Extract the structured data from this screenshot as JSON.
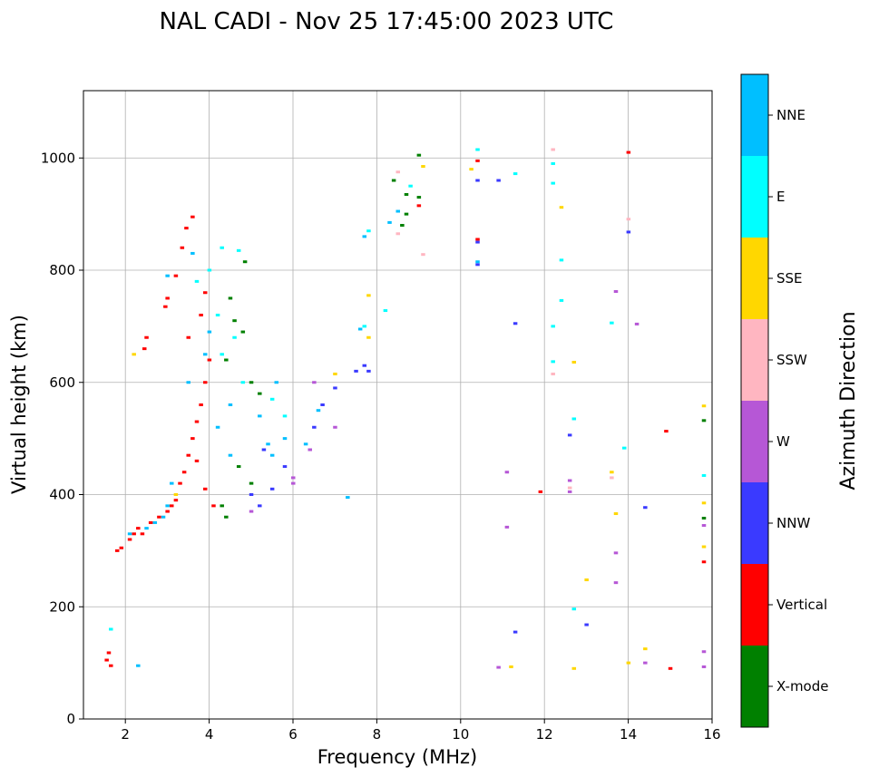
{
  "chart_data": {
    "type": "scatter",
    "title": "NAL CADI - Nov 25 17:45:00 2023 UTC",
    "xlabel": "Frequency (MHz)",
    "ylabel": "Virtual height (km)",
    "xlim": [
      1,
      16
    ],
    "ylim": [
      0,
      1120
    ],
    "xticks": [
      2,
      4,
      6,
      8,
      10,
      12,
      14,
      16
    ],
    "yticks": [
      0,
      200,
      400,
      600,
      800,
      1000
    ],
    "grid": true,
    "colorbar": {
      "title": "Azimuth Direction",
      "categories": [
        {
          "name": "X-mode",
          "color": "#008000"
        },
        {
          "name": "Vertical",
          "color": "#ff0000"
        },
        {
          "name": "NNW",
          "color": "#3a3aff"
        },
        {
          "name": "W",
          "color": "#b657d6"
        },
        {
          "name": "SSW",
          "color": "#ffb6c1"
        },
        {
          "name": "SSE",
          "color": "#ffd700"
        },
        {
          "name": "E",
          "color": "#00ffff"
        },
        {
          "name": "NNE",
          "color": "#00bfff"
        }
      ]
    },
    "series": [
      {
        "name": "Vertical",
        "points": [
          [
            1.55,
            105
          ],
          [
            1.6,
            118
          ],
          [
            1.65,
            95
          ],
          [
            1.8,
            300
          ],
          [
            1.9,
            305
          ],
          [
            2.1,
            320
          ],
          [
            2.2,
            330
          ],
          [
            2.3,
            340
          ],
          [
            2.4,
            330
          ],
          [
            2.6,
            350
          ],
          [
            2.8,
            360
          ],
          [
            3.0,
            370
          ],
          [
            3.1,
            380
          ],
          [
            3.2,
            390
          ],
          [
            3.3,
            420
          ],
          [
            3.4,
            440
          ],
          [
            3.5,
            470
          ],
          [
            3.6,
            500
          ],
          [
            3.7,
            530
          ],
          [
            3.8,
            560
          ],
          [
            3.9,
            600
          ],
          [
            4.0,
            640
          ],
          [
            3.5,
            680
          ],
          [
            3.8,
            720
          ],
          [
            3.9,
            760
          ],
          [
            2.95,
            735
          ],
          [
            3.0,
            750
          ],
          [
            3.2,
            790
          ],
          [
            3.35,
            840
          ],
          [
            3.45,
            875
          ],
          [
            3.6,
            895
          ],
          [
            2.45,
            660
          ],
          [
            2.5,
            680
          ],
          [
            3.7,
            460
          ],
          [
            3.9,
            410
          ],
          [
            4.1,
            380
          ],
          [
            10.4,
            855
          ],
          [
            10.4,
            995
          ],
          [
            9.0,
            915
          ],
          [
            11.9,
            405
          ],
          [
            14.9,
            513
          ],
          [
            15.0,
            90
          ],
          [
            15.8,
            280
          ],
          [
            14,
            1010
          ]
        ]
      },
      {
        "name": "X-mode",
        "points": [
          [
            4.3,
            380
          ],
          [
            4.5,
            750
          ],
          [
            4.6,
            710
          ],
          [
            4.8,
            690
          ],
          [
            5.0,
            600
          ],
          [
            5.2,
            580
          ],
          [
            4.7,
            450
          ],
          [
            5.0,
            420
          ],
          [
            4.4,
            360
          ],
          [
            8.7,
            900
          ],
          [
            8.7,
            935
          ],
          [
            8.6,
            880
          ],
          [
            9.0,
            1005
          ],
          [
            8.4,
            960
          ],
          [
            9.0,
            930
          ],
          [
            15.8,
            532
          ],
          [
            15.8,
            358
          ],
          [
            4.85,
            815
          ],
          [
            4.4,
            640
          ]
        ]
      },
      {
        "name": "NNW",
        "points": [
          [
            5.2,
            380
          ],
          [
            5.5,
            410
          ],
          [
            5.8,
            450
          ],
          [
            6.5,
            520
          ],
          [
            6.7,
            560
          ],
          [
            7.0,
            590
          ],
          [
            7.5,
            620
          ],
          [
            7.7,
            630
          ],
          [
            5.3,
            480
          ],
          [
            5.0,
            400
          ],
          [
            10.4,
            810
          ],
          [
            10.4,
            960
          ],
          [
            10.4,
            850
          ],
          [
            10.9,
            960
          ],
          [
            12.6,
            506
          ],
          [
            13.0,
            168
          ],
          [
            14.4,
            377
          ],
          [
            14,
            868
          ],
          [
            11.3,
            155
          ],
          [
            11.3,
            705
          ],
          [
            7.8,
            620
          ]
        ]
      },
      {
        "name": "W",
        "points": [
          [
            5.0,
            370
          ],
          [
            6.0,
            420
          ],
          [
            6.0,
            430
          ],
          [
            6.4,
            480
          ],
          [
            6.5,
            600
          ],
          [
            7.0,
            520
          ],
          [
            13.7,
            762
          ],
          [
            11.1,
            440
          ],
          [
            11.1,
            342
          ],
          [
            12.6,
            425
          ],
          [
            12.6,
            405
          ],
          [
            10.9,
            92
          ],
          [
            13.7,
            243
          ],
          [
            13.7,
            296
          ],
          [
            15.8,
            345
          ],
          [
            15.8,
            120
          ],
          [
            14.2,
            704
          ],
          [
            14.4,
            100
          ],
          [
            15.8,
            93
          ]
        ]
      },
      {
        "name": "SSW",
        "points": [
          [
            8.5,
            975
          ],
          [
            8.5,
            865
          ],
          [
            9.1,
            828
          ],
          [
            12.2,
            615
          ],
          [
            12.2,
            1015
          ],
          [
            14.0,
            891
          ],
          [
            13.6,
            430
          ],
          [
            12.6,
            412
          ]
        ]
      },
      {
        "name": "SSE",
        "points": [
          [
            7.8,
            755
          ],
          [
            7.8,
            680
          ],
          [
            7.0,
            615
          ],
          [
            10.25,
            980
          ],
          [
            9.1,
            985
          ],
          [
            12.4,
            912
          ],
          [
            12.7,
            636
          ],
          [
            13.0,
            248
          ],
          [
            12.7,
            90
          ],
          [
            11.2,
            93
          ],
          [
            14.4,
            125
          ],
          [
            13.6,
            440
          ],
          [
            13.7,
            366
          ],
          [
            14.0,
            100
          ],
          [
            15.8,
            558
          ],
          [
            15.8,
            385
          ],
          [
            15.8,
            307
          ],
          [
            2.2,
            650
          ],
          [
            3.2,
            400
          ]
        ]
      },
      {
        "name": "E",
        "points": [
          [
            4.3,
            840
          ],
          [
            4.7,
            835
          ],
          [
            4.0,
            800
          ],
          [
            3.7,
            780
          ],
          [
            4.2,
            720
          ],
          [
            4.3,
            650
          ],
          [
            4.6,
            680
          ],
          [
            4.8,
            600
          ],
          [
            5.5,
            570
          ],
          [
            5.8,
            540
          ],
          [
            7.8,
            870
          ],
          [
            7.7,
            700
          ],
          [
            8.2,
            728
          ],
          [
            8.8,
            950
          ],
          [
            10.4,
            1015
          ],
          [
            12.2,
            990
          ],
          [
            12.4,
            818
          ],
          [
            12.4,
            746
          ],
          [
            12.2,
            700
          ],
          [
            12.2,
            637
          ],
          [
            12.7,
            535
          ],
          [
            12.7,
            196
          ],
          [
            13.6,
            706
          ],
          [
            13.9,
            483
          ],
          [
            15.8,
            434
          ],
          [
            12.2,
            955
          ],
          [
            1.65,
            160
          ],
          [
            11.3,
            972
          ]
        ]
      },
      {
        "name": "NNE",
        "points": [
          [
            3.0,
            790
          ],
          [
            3.6,
            830
          ],
          [
            4.0,
            690
          ],
          [
            3.9,
            650
          ],
          [
            3.5,
            600
          ],
          [
            3.1,
            420
          ],
          [
            3.0,
            380
          ],
          [
            2.9,
            360
          ],
          [
            2.7,
            350
          ],
          [
            2.5,
            340
          ],
          [
            2.1,
            330
          ],
          [
            2.3,
            95
          ],
          [
            4.5,
            560
          ],
          [
            5.2,
            540
          ],
          [
            5.4,
            490
          ],
          [
            5.5,
            470
          ],
          [
            5.8,
            500
          ],
          [
            6.3,
            490
          ],
          [
            6.6,
            550
          ],
          [
            7.3,
            395
          ],
          [
            7.6,
            695
          ],
          [
            8.3,
            885
          ],
          [
            8.5,
            905
          ],
          [
            10.4,
            815
          ],
          [
            7.7,
            860
          ],
          [
            5.6,
            600
          ],
          [
            4.2,
            520
          ],
          [
            4.5,
            470
          ]
        ]
      }
    ]
  }
}
